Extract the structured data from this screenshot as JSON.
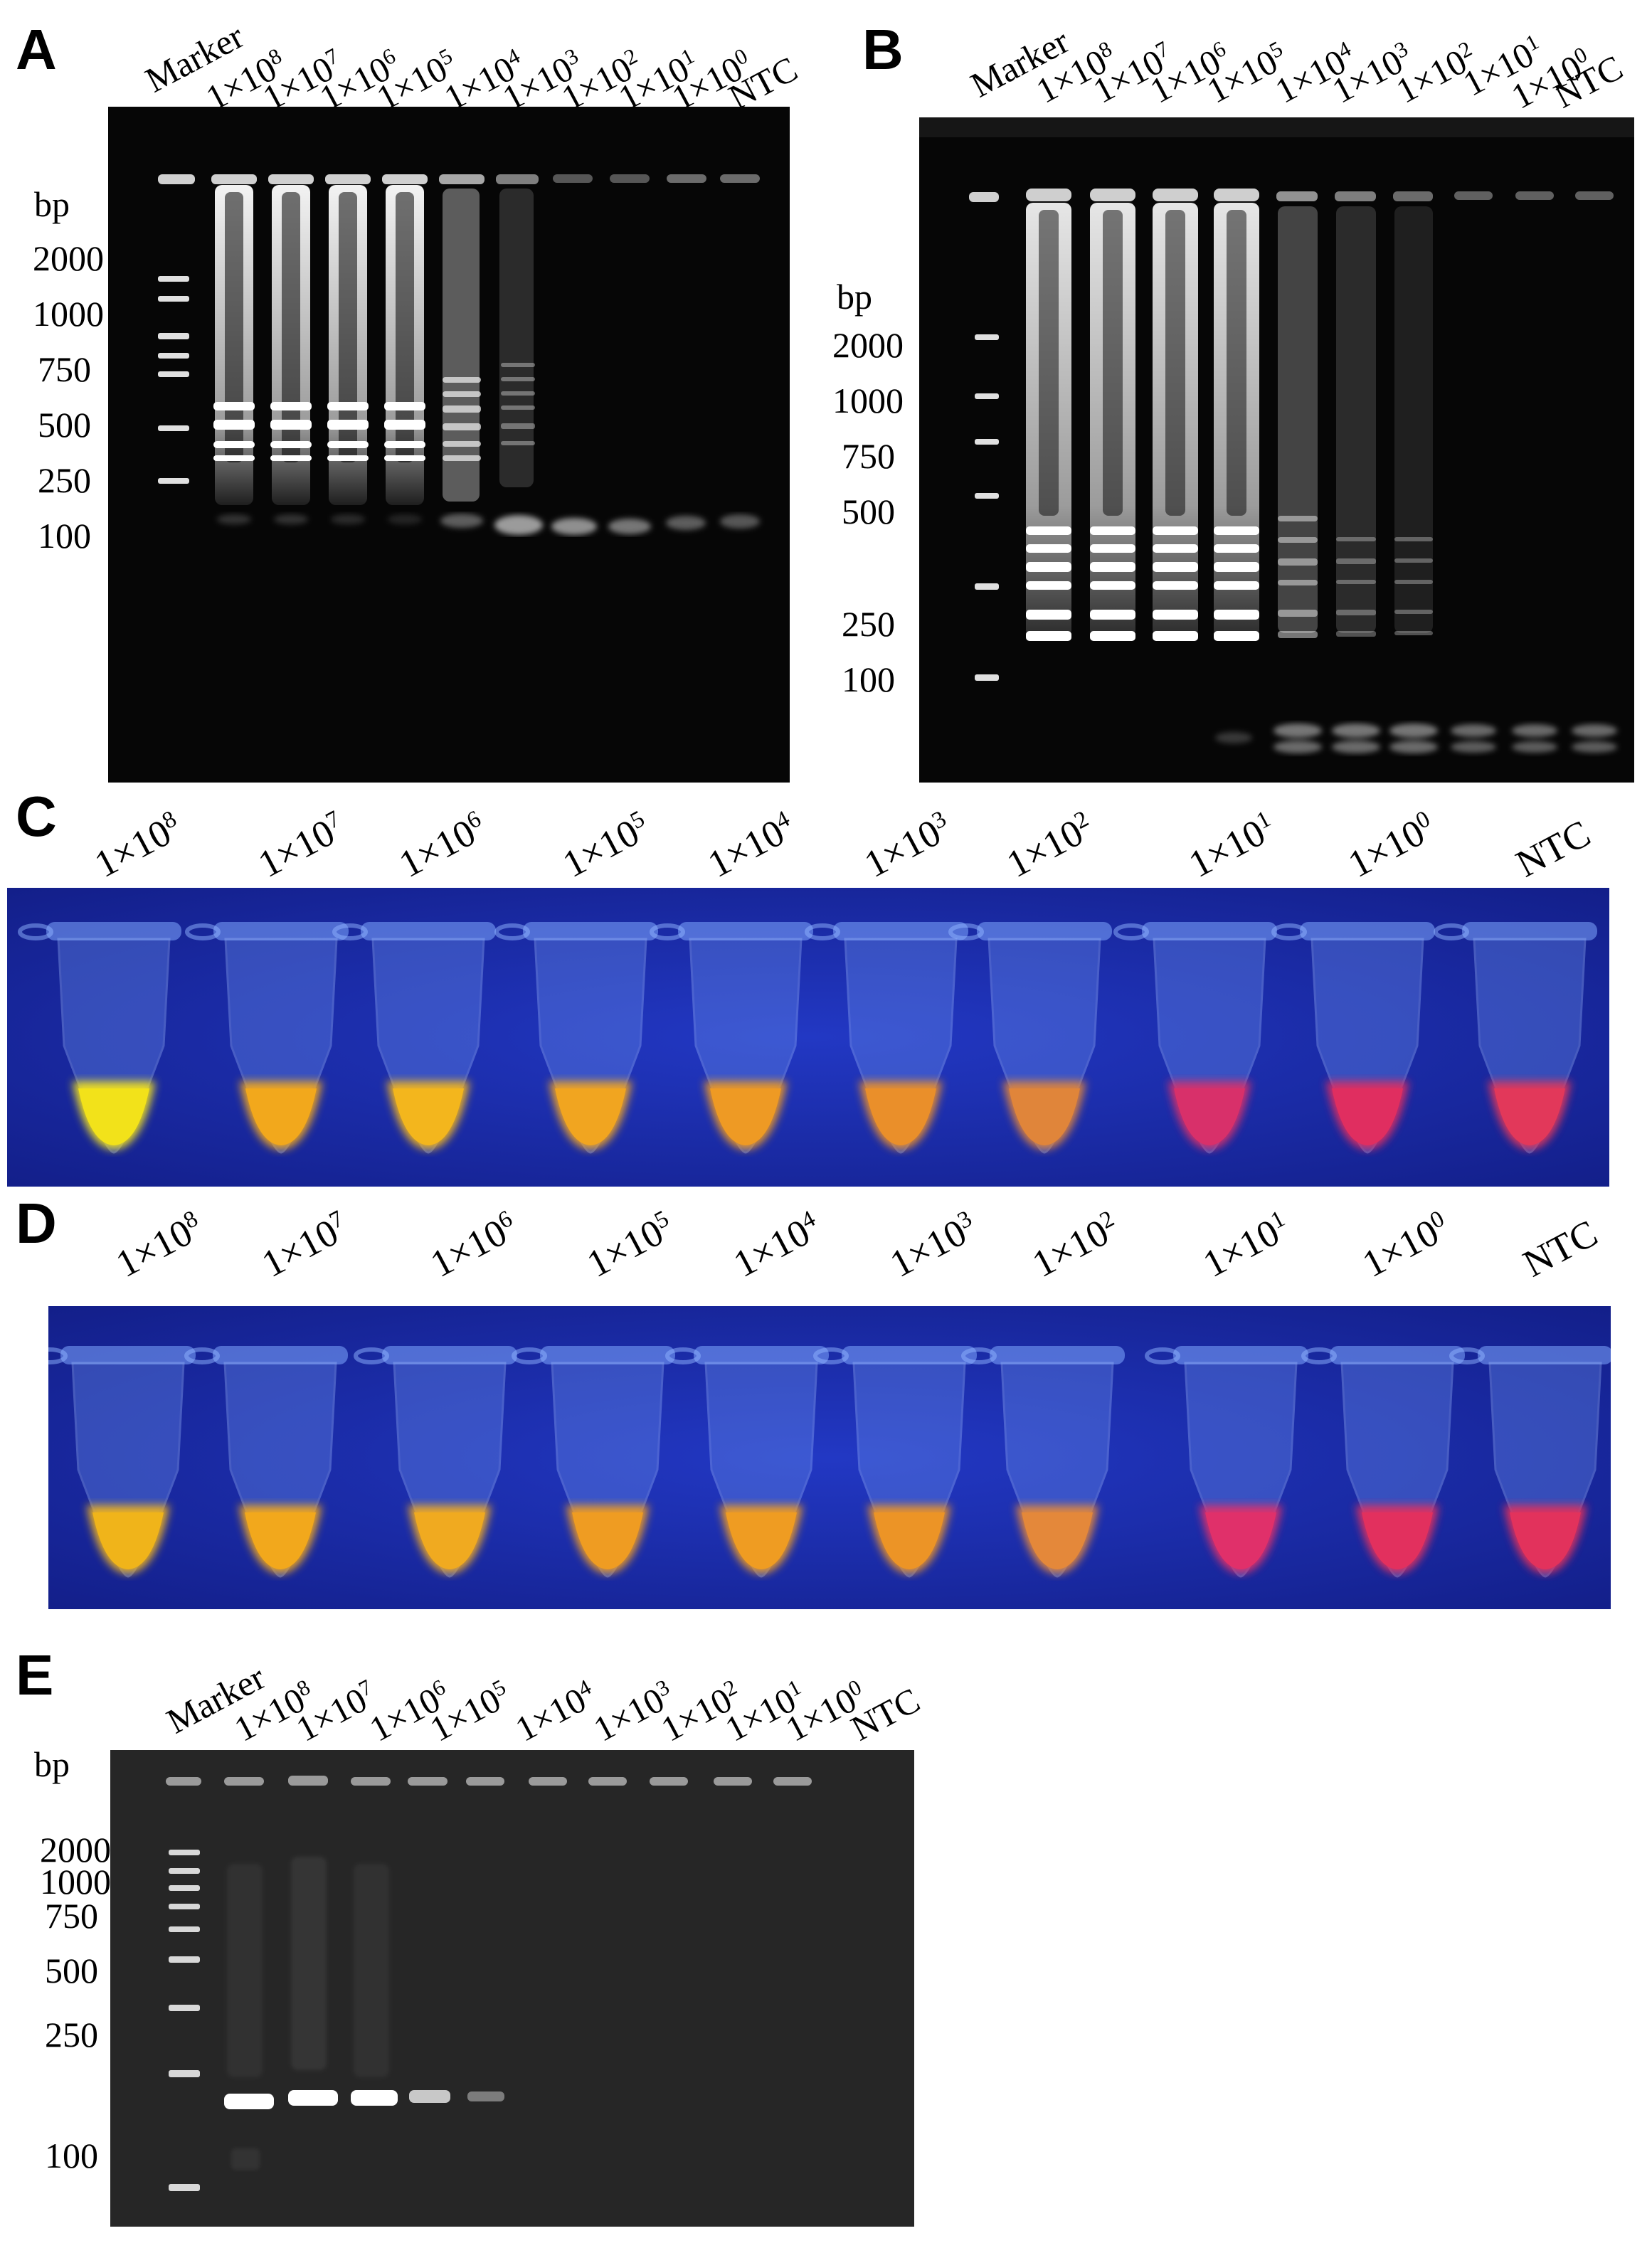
{
  "panels": {
    "A": {
      "letter": "A",
      "bp_title": "bp",
      "lanes": [
        {
          "label": "Marker",
          "base": "",
          "exp": ""
        },
        {
          "label": "",
          "base": "1×10",
          "exp": "8"
        },
        {
          "label": "",
          "base": "1×10",
          "exp": "7"
        },
        {
          "label": "",
          "base": "1×10",
          "exp": "6"
        },
        {
          "label": "",
          "base": "1×10",
          "exp": "5"
        },
        {
          "label": "",
          "base": "1×10",
          "exp": "4"
        },
        {
          "label": "",
          "base": "1×10",
          "exp": "3"
        },
        {
          "label": "",
          "base": "1×10",
          "exp": "2"
        },
        {
          "label": "",
          "base": "1×10",
          "exp": "1"
        },
        {
          "label": "",
          "base": "1×10",
          "exp": "0"
        },
        {
          "label": "NTC",
          "base": "",
          "exp": ""
        }
      ],
      "bp_markers": [
        "2000",
        "1000",
        "750",
        "500",
        "250",
        "100"
      ]
    },
    "B": {
      "letter": "B",
      "bp_title": "bp",
      "lanes": [
        {
          "label": "Marker",
          "base": "",
          "exp": ""
        },
        {
          "label": "",
          "base": "1×10",
          "exp": "8"
        },
        {
          "label": "",
          "base": "1×10",
          "exp": "7"
        },
        {
          "label": "",
          "base": "1×10",
          "exp": "6"
        },
        {
          "label": "",
          "base": "1×10",
          "exp": "5"
        },
        {
          "label": "",
          "base": "1×10",
          "exp": "4"
        },
        {
          "label": "",
          "base": "1×10",
          "exp": "3"
        },
        {
          "label": "",
          "base": "1×10",
          "exp": "2"
        },
        {
          "label": "",
          "base": "1×10",
          "exp": "1"
        },
        {
          "label": "",
          "base": "1×10",
          "exp": "0"
        },
        {
          "label": "NTC",
          "base": "",
          "exp": ""
        }
      ],
      "bp_markers": [
        "2000",
        "1000",
        "750",
        "500",
        "250",
        "100"
      ]
    },
    "C": {
      "letter": "C",
      "tubes": [
        {
          "label": "",
          "base": "1×10",
          "exp": "8",
          "color": "#f2e21a"
        },
        {
          "label": "",
          "base": "1×10",
          "exp": "7",
          "color": "#f2a81c"
        },
        {
          "label": "",
          "base": "1×10",
          "exp": "6",
          "color": "#f3b61d"
        },
        {
          "label": "",
          "base": "1×10",
          "exp": "5",
          "color": "#f1a520"
        },
        {
          "label": "",
          "base": "1×10",
          "exp": "4",
          "color": "#ee9a24"
        },
        {
          "label": "",
          "base": "1×10",
          "exp": "3",
          "color": "#ea8f2a"
        },
        {
          "label": "",
          "base": "1×10",
          "exp": "2",
          "color": "#e0853a"
        },
        {
          "label": "",
          "base": "1×10",
          "exp": "1",
          "color": "#d8306a"
        },
        {
          "label": "",
          "base": "1×10",
          "exp": "0",
          "color": "#e02e60"
        },
        {
          "label": "NTC",
          "base": "",
          "exp": "",
          "color": "#e2385a"
        }
      ]
    },
    "D": {
      "letter": "D",
      "tubes": [
        {
          "label": "",
          "base": "1×10",
          "exp": "8",
          "color": "#f0b41a"
        },
        {
          "label": "",
          "base": "1×10",
          "exp": "7",
          "color": "#f2a81c"
        },
        {
          "label": "",
          "base": "1×10",
          "exp": "6",
          "color": "#f0aa20"
        },
        {
          "label": "",
          "base": "1×10",
          "exp": "5",
          "color": "#ef9c22"
        },
        {
          "label": "",
          "base": "1×10",
          "exp": "4",
          "color": "#ef9c22"
        },
        {
          "label": "",
          "base": "1×10",
          "exp": "3",
          "color": "#ec9426"
        },
        {
          "label": "",
          "base": "1×10",
          "exp": "2",
          "color": "#e4883a"
        },
        {
          "label": "",
          "base": "1×10",
          "exp": "1",
          "color": "#e0306a"
        },
        {
          "label": "",
          "base": "1×10",
          "exp": "0",
          "color": "#e2305e"
        },
        {
          "label": "NTC",
          "base": "",
          "exp": "",
          "color": "#e2325c"
        }
      ]
    },
    "E": {
      "letter": "E",
      "bp_title": "bp",
      "lanes": [
        {
          "label": "Marker",
          "base": "",
          "exp": ""
        },
        {
          "label": "",
          "base": "1×10",
          "exp": "8"
        },
        {
          "label": "",
          "base": "1×10",
          "exp": "7"
        },
        {
          "label": "",
          "base": "1×10",
          "exp": "6"
        },
        {
          "label": "",
          "base": "1×10",
          "exp": "5"
        },
        {
          "label": "",
          "base": "1×10",
          "exp": "4"
        },
        {
          "label": "",
          "base": "1×10",
          "exp": "3"
        },
        {
          "label": "",
          "base": "1×10",
          "exp": "2"
        },
        {
          "label": "",
          "base": "1×10",
          "exp": "1"
        },
        {
          "label": "",
          "base": "1×10",
          "exp": "0"
        },
        {
          "label": "NTC",
          "base": "",
          "exp": ""
        }
      ],
      "bp_markers": [
        "2000",
        "1000",
        "750",
        "500",
        "250",
        "100"
      ]
    }
  },
  "colors": {
    "gel_background": "#060606",
    "gel_e_background": "#262626",
    "tube_box_background": "#1a2fae",
    "band": "#ffffff"
  }
}
